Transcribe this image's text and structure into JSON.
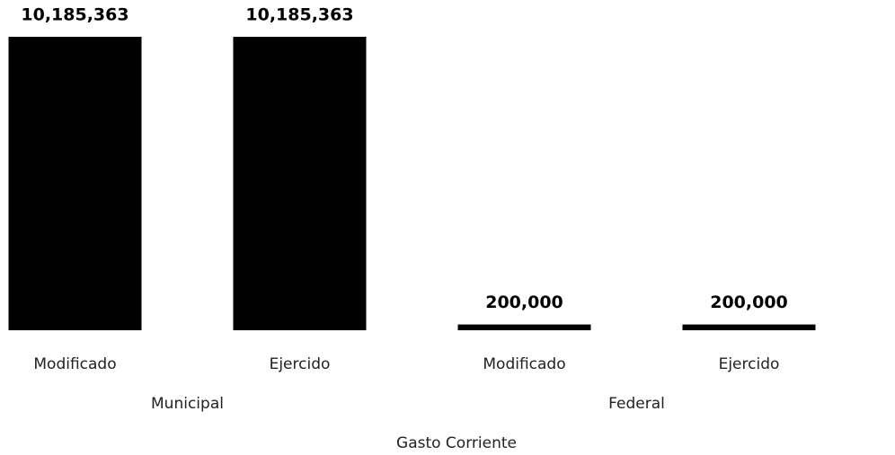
{
  "chart_data": {
    "type": "bar",
    "categories": [
      "Modificado",
      "Ejercido",
      "Modificado",
      "Ejercido"
    ],
    "values": [
      10185363,
      10185363,
      200000,
      200000
    ],
    "value_labels": [
      "10,185,363",
      "10,185,363",
      "200,000",
      "200,000"
    ],
    "groups": [
      "Municipal",
      "Federal"
    ],
    "x_label": "Gasto Corriente",
    "color": "#000000"
  }
}
